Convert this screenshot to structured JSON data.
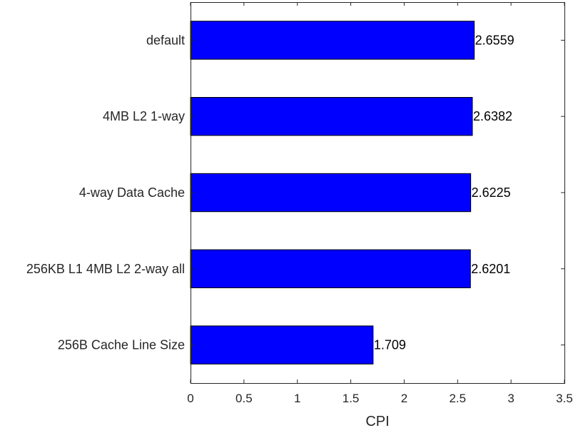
{
  "chart_data": {
    "type": "bar",
    "orientation": "horizontal",
    "categories": [
      "256B Cache Line Size",
      "256KB L1 4MB L2 2-way all",
      "4-way Data Cache",
      "4MB L2 1-way",
      "default"
    ],
    "values": [
      1.709,
      2.6201,
      2.6225,
      2.6382,
      2.6559
    ],
    "data_labels": [
      "1.709",
      "2.6201",
      "2.6225",
      "2.6382",
      "2.6559"
    ],
    "xlabel": "CPI",
    "ylabel": "",
    "title": "",
    "xlim": [
      0,
      3.5
    ],
    "xticks": [
      0,
      0.5,
      1,
      1.5,
      2,
      2.5,
      3,
      3.5
    ],
    "xtick_labels": [
      "0",
      "0.5",
      "1",
      "1.5",
      "2",
      "2.5",
      "3",
      "3.5"
    ],
    "grid": false,
    "legend": "none",
    "colors": {
      "bar_fill": "#0000ff",
      "bar_edge": "#000000",
      "axis": "#262626",
      "background": "#ffffff"
    }
  }
}
